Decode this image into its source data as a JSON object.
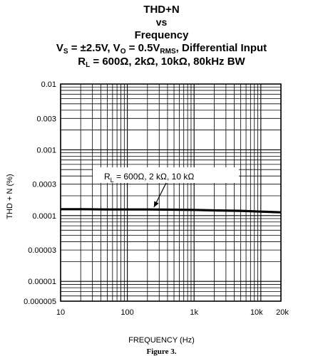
{
  "chart_data": {
    "type": "line",
    "title_lines": [
      "THD+N",
      "vs",
      "Frequency"
    ],
    "subtitle_lines": [
      [
        "V",
        "S",
        " = ±2.5V, V",
        "O",
        " = 0.5V",
        "RMS",
        ", Differential Input"
      ],
      [
        "R",
        "L",
        " = 600Ω, 2kΩ, 10kΩ, 80kHz BW"
      ]
    ],
    "xlabel": "FREQUENCY (Hz)",
    "ylabel": "THD + N (%)",
    "x_scale": "log",
    "y_scale": "log",
    "xlim": [
      10,
      20000
    ],
    "ylim": [
      5e-06,
      0.01
    ],
    "x_ticks": [
      {
        "value": 10,
        "label": "10"
      },
      {
        "value": 100,
        "label": "100"
      },
      {
        "value": 1000,
        "label": "1k"
      },
      {
        "value": 10000,
        "label": "10k"
      },
      {
        "value": 20000,
        "label": "20k"
      }
    ],
    "y_ticks": [
      {
        "value": 0.01,
        "label": "0.01"
      },
      {
        "value": 0.003,
        "label": "0.003"
      },
      {
        "value": 0.001,
        "label": "0.001"
      },
      {
        "value": 0.0003,
        "label": "0.0003"
      },
      {
        "value": 0.0001,
        "label": "0.0001"
      },
      {
        "value": 3e-05,
        "label": "0.00003"
      },
      {
        "value": 1e-05,
        "label": "0.00001"
      },
      {
        "value": 5e-06,
        "label": "0.000005"
      }
    ],
    "grid": true,
    "series": [
      {
        "x": [
          10,
          20,
          50,
          100,
          200,
          500,
          1000,
          2000,
          5000,
          10000,
          20000
        ],
        "y": [
          0.000125,
          0.000125,
          0.000124,
          0.000124,
          0.000124,
          0.000123,
          0.000122,
          0.00012,
          0.000118,
          0.000115,
          0.000112
        ]
      }
    ],
    "annotations": [
      {
        "parts": [
          "R",
          "L",
          " = 600Ω, 2 kΩ, 10 kΩ"
        ],
        "arrow_to": {
          "x": 250,
          "y": 0.000124
        }
      }
    ]
  },
  "figure_caption": "Figure 3."
}
